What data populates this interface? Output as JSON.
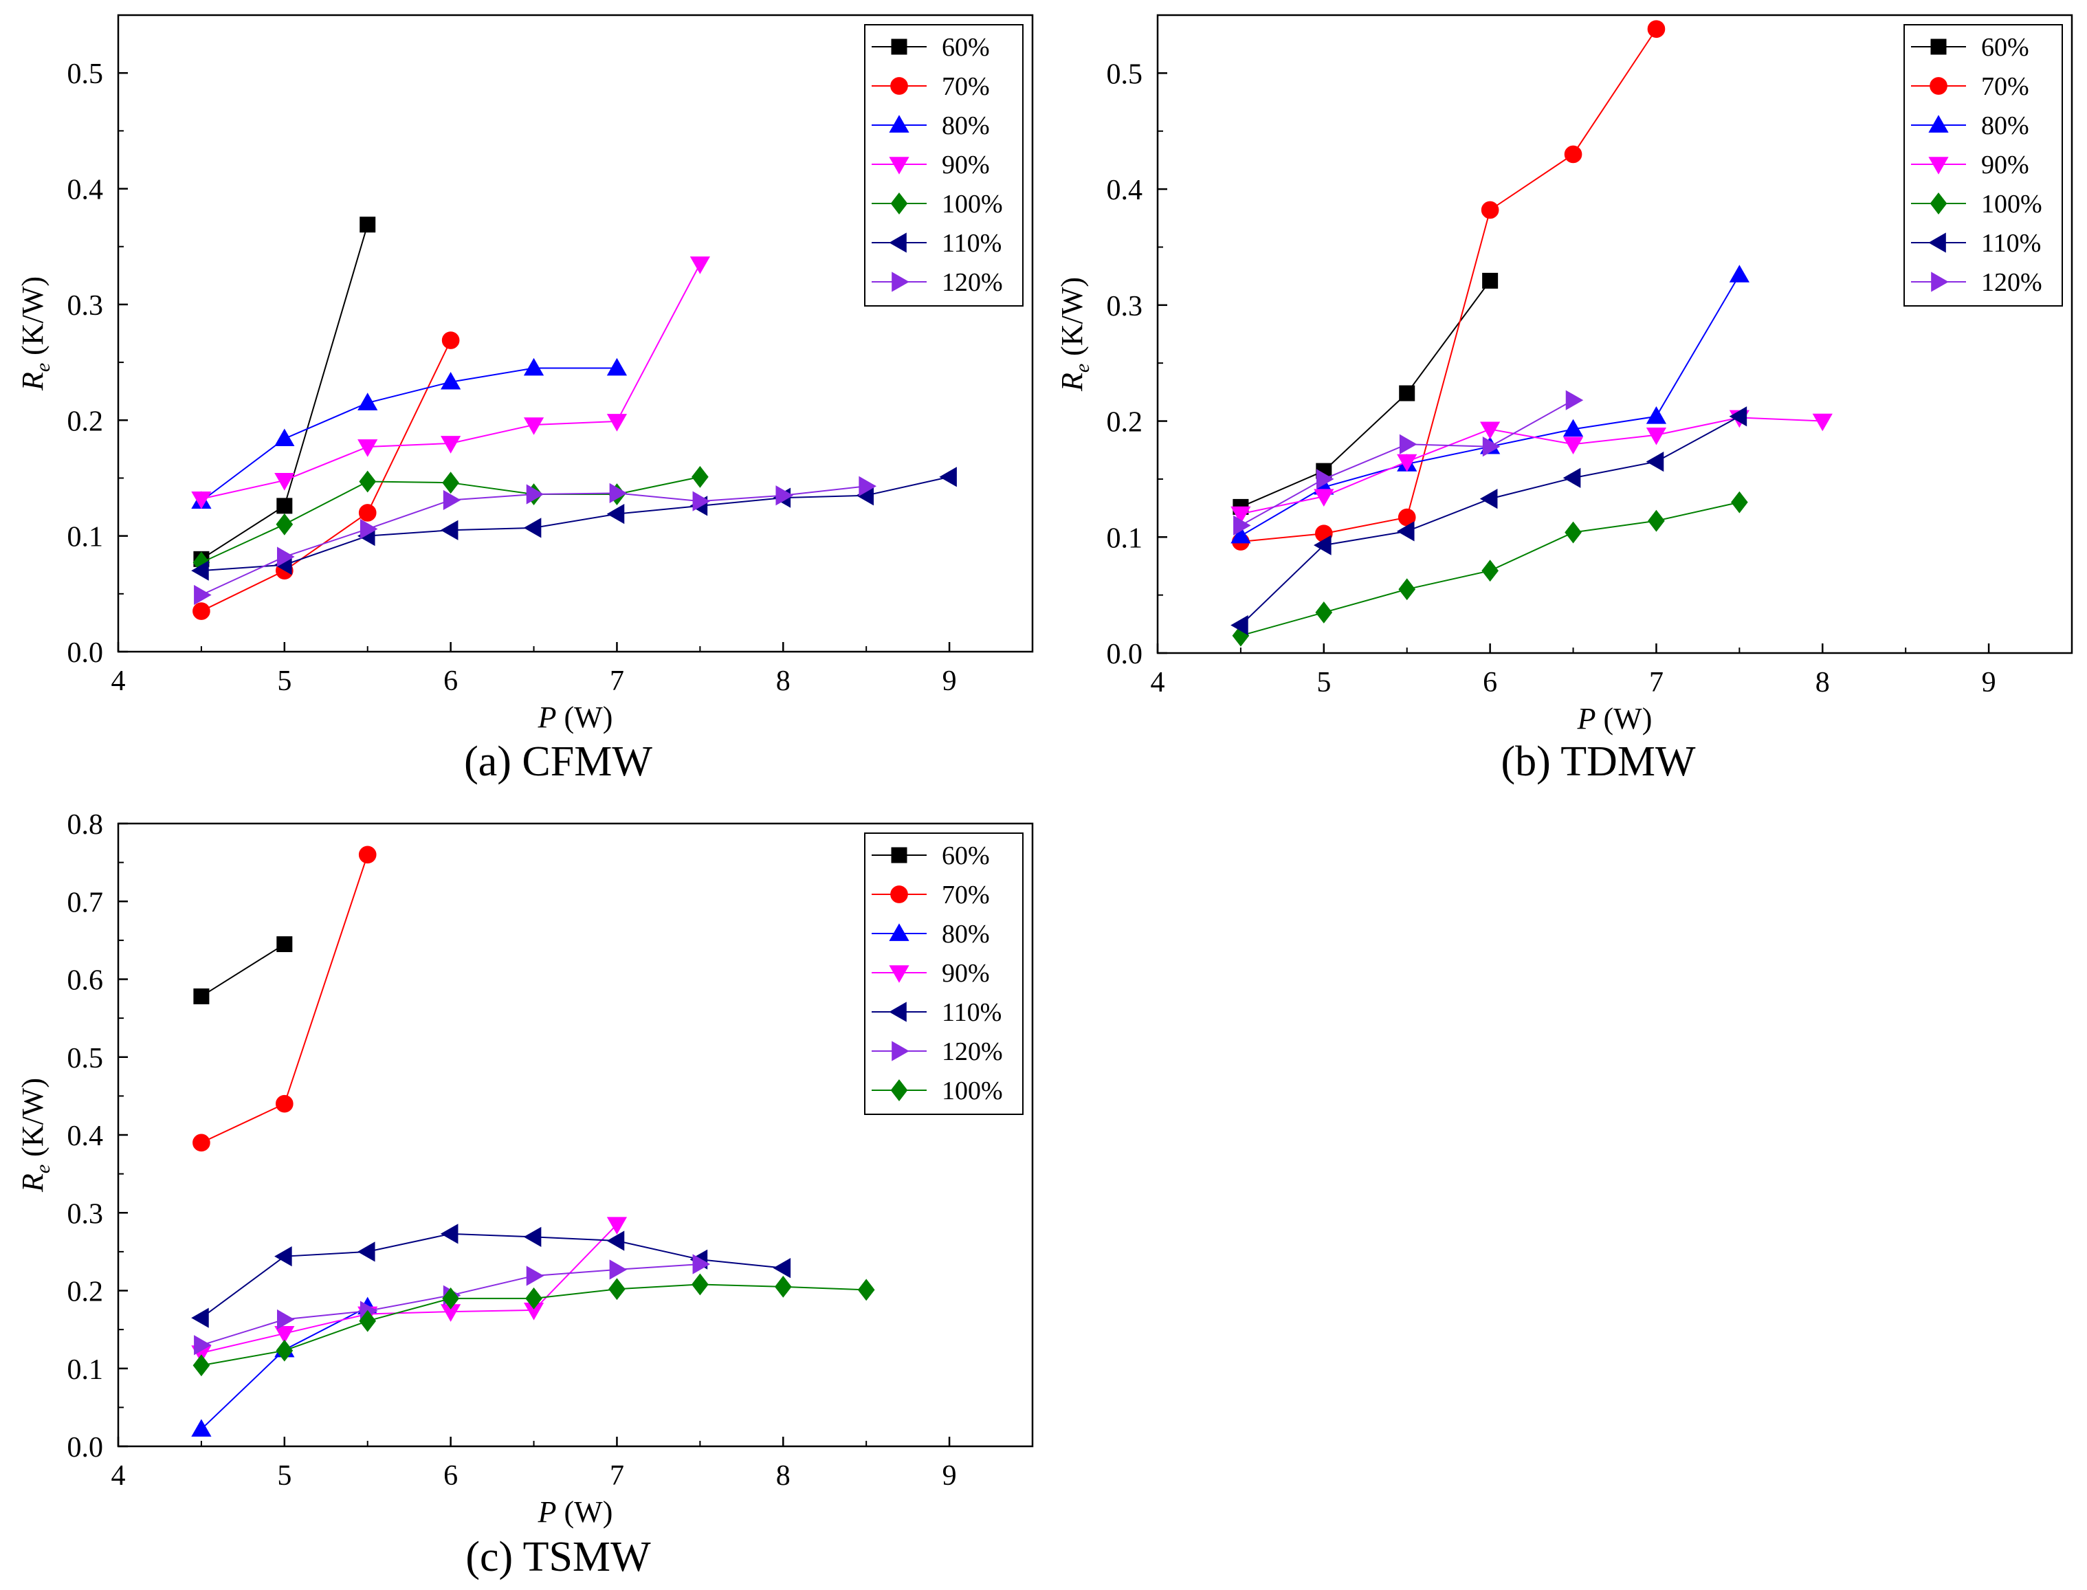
{
  "chart_data": [
    {
      "type": "line",
      "caption": "(a) CFMW",
      "xlabel_var": "P",
      "xlabel_unit": " (W)",
      "ylabel_var": "R",
      "ylabel_sub": "e",
      "ylabel_unit": " (K/W)",
      "xlim": [
        4,
        9.5
      ],
      "ylim": [
        0,
        0.55
      ],
      "xticks": [
        4,
        5,
        6,
        7,
        8,
        9
      ],
      "yticks": [
        0.0,
        0.1,
        0.2,
        0.3,
        0.4,
        0.5
      ],
      "ytick_labels": [
        "0.0",
        "0.1",
        "0.2",
        "0.3",
        "0.4",
        "0.5"
      ],
      "legend_position": "top-right",
      "series": [
        {
          "name": "60%",
          "marker": "square",
          "color": "#000000",
          "x": [
            4.5,
            5,
            5.5
          ],
          "y": [
            0.08,
            0.126,
            0.369
          ]
        },
        {
          "name": "70%",
          "marker": "circle",
          "color": "#ff0000",
          "x": [
            4.5,
            5,
            5.5,
            6
          ],
          "y": [
            0.035,
            0.07,
            0.12,
            0.269
          ]
        },
        {
          "name": "80%",
          "marker": "triangle-up",
          "color": "#0000ff",
          "x": [
            4.5,
            5,
            5.5,
            6,
            6.5,
            7
          ],
          "y": [
            0.13,
            0.184,
            0.215,
            0.233,
            0.245,
            0.245
          ]
        },
        {
          "name": "90%",
          "marker": "triangle-down",
          "color": "#ff00ff",
          "x": [
            4.5,
            5,
            5.5,
            6,
            6.5,
            7,
            7.5
          ],
          "y": [
            0.132,
            0.148,
            0.177,
            0.18,
            0.196,
            0.199,
            0.335
          ]
        },
        {
          "name": "100%",
          "marker": "diamond",
          "color": "#008000",
          "x": [
            4.5,
            5,
            5.5,
            6,
            6.5,
            7,
            7.5
          ],
          "y": [
            0.077,
            0.11,
            0.147,
            0.146,
            0.136,
            0.136,
            0.151
          ]
        },
        {
          "name": "110%",
          "marker": "triangle-left",
          "color": "#000080",
          "x": [
            4.5,
            5,
            5.5,
            6,
            6.5,
            7,
            7.5,
            8,
            8.5,
            9
          ],
          "y": [
            0.07,
            0.075,
            0.1,
            0.105,
            0.107,
            0.119,
            0.126,
            0.133,
            0.135,
            0.151
          ]
        },
        {
          "name": "120%",
          "marker": "triangle-right",
          "color": "#8a2be2",
          "x": [
            4.5,
            5,
            5.5,
            6,
            6.5,
            7,
            7.5,
            8,
            8.5
          ],
          "y": [
            0.049,
            0.082,
            0.106,
            0.131,
            0.136,
            0.137,
            0.13,
            0.135,
            0.143
          ]
        }
      ]
    },
    {
      "type": "line",
      "caption": "(b) TDMW",
      "xlabel_var": "P",
      "xlabel_unit": " (W)",
      "ylabel_var": "R",
      "ylabel_sub": "e",
      "ylabel_unit": " (K/W)",
      "xlim": [
        4,
        9.5
      ],
      "ylim": [
        0,
        0.55
      ],
      "xticks": [
        4,
        5,
        6,
        7,
        8,
        9
      ],
      "yticks": [
        0.0,
        0.1,
        0.2,
        0.3,
        0.4,
        0.5
      ],
      "ytick_labels": [
        "0.0",
        "0.1",
        "0.2",
        "0.3",
        "0.4",
        "0.5"
      ],
      "legend_position": "top-right",
      "series": [
        {
          "name": "60%",
          "marker": "square",
          "color": "#000000",
          "x": [
            4.5,
            5,
            5.5,
            6
          ],
          "y": [
            0.126,
            0.157,
            0.224,
            0.321
          ]
        },
        {
          "name": "70%",
          "marker": "circle",
          "color": "#ff0000",
          "x": [
            4.5,
            5,
            5.5,
            6,
            6.5,
            7
          ],
          "y": [
            0.096,
            0.103,
            0.117,
            0.382,
            0.43,
            0.538
          ]
        },
        {
          "name": "80%",
          "marker": "triangle-up",
          "color": "#0000ff",
          "x": [
            4.5,
            5,
            5.5,
            6,
            6.5,
            7,
            7.5
          ],
          "y": [
            0.101,
            0.143,
            0.163,
            0.178,
            0.193,
            0.204,
            0.326
          ]
        },
        {
          "name": "90%",
          "marker": "triangle-down",
          "color": "#ff00ff",
          "x": [
            4.5,
            5,
            5.5,
            6,
            6.5,
            7,
            7.5,
            8
          ],
          "y": [
            0.12,
            0.135,
            0.165,
            0.193,
            0.18,
            0.188,
            0.203,
            0.2
          ]
        },
        {
          "name": "100%",
          "marker": "diamond",
          "color": "#008000",
          "x": [
            4.5,
            5,
            5.5,
            6,
            6.5,
            7,
            7.5
          ],
          "y": [
            0.015,
            0.035,
            0.055,
            0.071,
            0.104,
            0.114,
            0.13
          ]
        },
        {
          "name": "110%",
          "marker": "triangle-left",
          "color": "#000080",
          "x": [
            4.5,
            5,
            5.5,
            6,
            6.5,
            7,
            7.5
          ],
          "y": [
            0.024,
            0.093,
            0.105,
            0.133,
            0.151,
            0.165,
            0.204
          ]
        },
        {
          "name": "120%",
          "marker": "triangle-right",
          "color": "#8a2be2",
          "x": [
            4.5,
            5,
            5.5,
            6,
            6.5
          ],
          "y": [
            0.11,
            0.15,
            0.18,
            0.178,
            0.218
          ]
        }
      ]
    },
    {
      "type": "line",
      "caption": "(c) TSMW",
      "xlabel_var": "P",
      "xlabel_unit": " (W)",
      "ylabel_var": "R",
      "ylabel_sub": "e",
      "ylabel_unit": " (K/W)",
      "xlim": [
        4,
        9.5
      ],
      "ylim": [
        0,
        0.8
      ],
      "xticks": [
        4,
        5,
        6,
        7,
        8,
        9
      ],
      "yticks": [
        0.0,
        0.1,
        0.2,
        0.3,
        0.4,
        0.5,
        0.6,
        0.7,
        0.8
      ],
      "ytick_labels": [
        "0.0",
        "0.1",
        "0.2",
        "0.3",
        "0.4",
        "0.5",
        "0.6",
        "0.7",
        "0.8"
      ],
      "legend_position": "top-right",
      "series": [
        {
          "name": "60%",
          "marker": "square",
          "color": "#000000",
          "x": [
            4.5,
            5
          ],
          "y": [
            0.578,
            0.645
          ]
        },
        {
          "name": "70%",
          "marker": "circle",
          "color": "#ff0000",
          "x": [
            4.5,
            5,
            5.5
          ],
          "y": [
            0.39,
            0.44,
            0.76
          ]
        },
        {
          "name": "80%",
          "marker": "triangle-up",
          "color": "#0000ff",
          "x": [
            4.5,
            5,
            5.5
          ],
          "y": [
            0.022,
            0.124,
            0.179
          ]
        },
        {
          "name": "90%",
          "marker": "triangle-down",
          "color": "#ff00ff",
          "x": [
            4.5,
            5,
            5.5,
            6,
            6.5,
            7
          ],
          "y": [
            0.12,
            0.145,
            0.17,
            0.173,
            0.175,
            0.285
          ]
        },
        {
          "name": "110%",
          "marker": "triangle-left",
          "color": "#000080",
          "x": [
            4.5,
            5,
            5.5,
            6,
            6.5,
            7,
            7.5,
            8
          ],
          "y": [
            0.165,
            0.244,
            0.25,
            0.273,
            0.269,
            0.264,
            0.24,
            0.229
          ]
        },
        {
          "name": "120%",
          "marker": "triangle-right",
          "color": "#8a2be2",
          "x": [
            4.5,
            5,
            5.5,
            6,
            6.5,
            7,
            7.5
          ],
          "y": [
            0.13,
            0.163,
            0.174,
            0.194,
            0.219,
            0.227,
            0.234
          ]
        },
        {
          "name": "100%",
          "marker": "diamond",
          "color": "#008000",
          "x": [
            4.5,
            5,
            5.5,
            6,
            6.5,
            7,
            7.5,
            8,
            8.5
          ],
          "y": [
            0.104,
            0.123,
            0.161,
            0.19,
            0.19,
            0.202,
            0.208,
            0.205,
            0.201
          ]
        }
      ]
    }
  ]
}
